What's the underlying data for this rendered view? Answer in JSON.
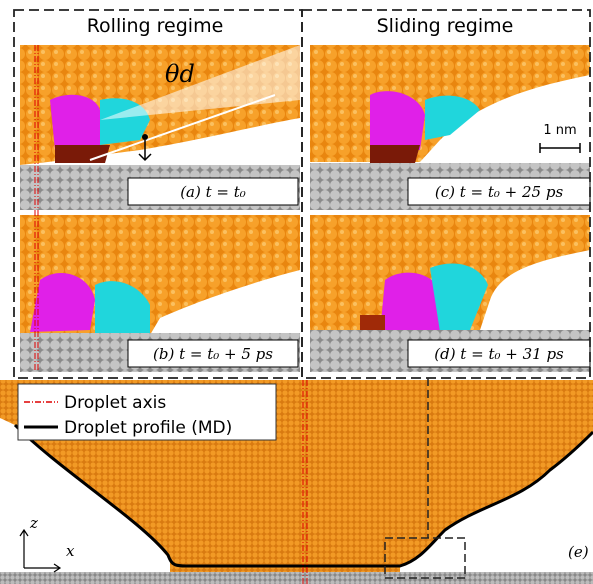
{
  "headers": {
    "left": "Rolling regime",
    "right": "Sliding regime"
  },
  "panels": [
    {
      "label": "(a) t = t₀"
    },
    {
      "label": "(b) t = t₀ + 5 ps"
    },
    {
      "label": "(c) t = t₀ + 25 ps"
    },
    {
      "label": "(d) t = t₀ + 31 ps"
    }
  ],
  "angle_label": "θd",
  "scale_label": "1 nm",
  "legend": [
    "Droplet axis",
    "Droplet profile (MD)"
  ],
  "axes": {
    "z": "z",
    "x": "x"
  },
  "panel_e_label": "(e)"
}
